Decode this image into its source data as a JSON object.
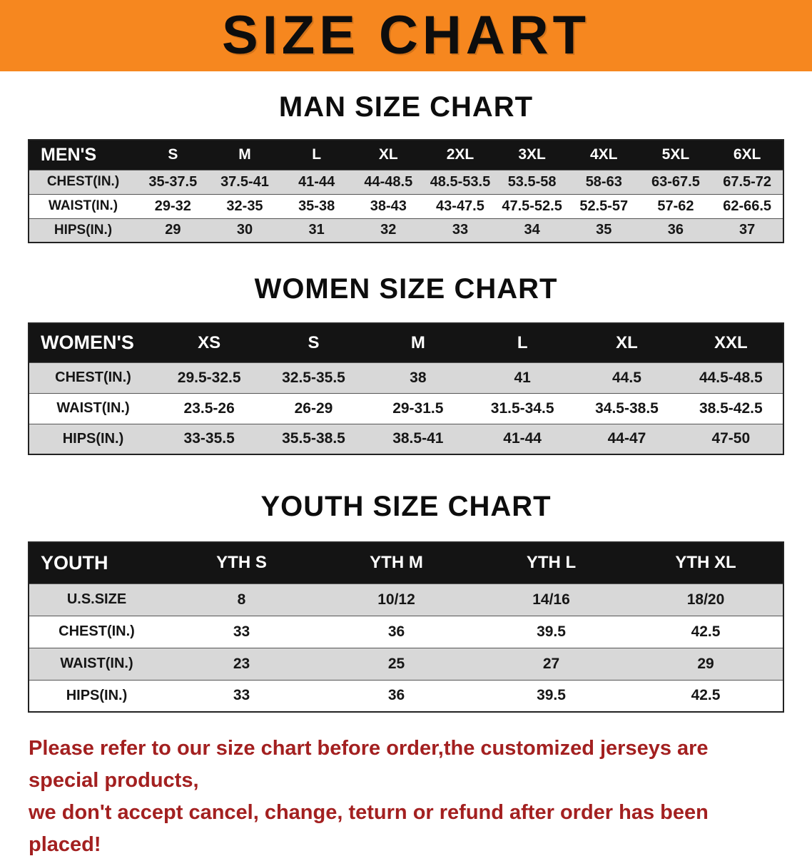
{
  "banner": {
    "title": "SIZE CHART",
    "bg_color": "#f6871f",
    "text_color": "#0d0d0d"
  },
  "sections": [
    {
      "id": "men",
      "heading": "MAN SIZE CHART",
      "header_row": [
        "MEN'S",
        "S",
        "M",
        "L",
        "XL",
        "2XL",
        "3XL",
        "4XL",
        "5XL",
        "6XL"
      ],
      "rows": [
        {
          "label": "CHEST(IN.)",
          "values": [
            "35-37.5",
            "37.5-41",
            "41-44",
            "44-48.5",
            "48.5-53.5",
            "53.5-58",
            "58-63",
            "63-67.5",
            "67.5-72"
          ]
        },
        {
          "label": "WAIST(IN.)",
          "values": [
            "29-32",
            "32-35",
            "35-38",
            "38-43",
            "43-47.5",
            "47.5-52.5",
            "52.5-57",
            "57-62",
            "62-66.5"
          ]
        },
        {
          "label": "HIPS(IN.)",
          "values": [
            "29",
            "30",
            "31",
            "32",
            "33",
            "34",
            "35",
            "36",
            "37"
          ]
        }
      ]
    },
    {
      "id": "women",
      "heading": "WOMEN SIZE CHART",
      "header_row": [
        "WOMEN'S",
        "XS",
        "S",
        "M",
        "L",
        "XL",
        "XXL"
      ],
      "rows": [
        {
          "label": "CHEST(IN.)",
          "values": [
            "29.5-32.5",
            "32.5-35.5",
            "38",
            "41",
            "44.5",
            "44.5-48.5"
          ]
        },
        {
          "label": "WAIST(IN.)",
          "values": [
            "23.5-26",
            "26-29",
            "29-31.5",
            "31.5-34.5",
            "34.5-38.5",
            "38.5-42.5"
          ]
        },
        {
          "label": "HIPS(IN.)",
          "values": [
            "33-35.5",
            "35.5-38.5",
            "38.5-41",
            "41-44",
            "44-47",
            "47-50"
          ]
        }
      ]
    },
    {
      "id": "youth",
      "heading": "YOUTH SIZE CHART",
      "header_row": [
        "YOUTH",
        "YTH S",
        "YTH M",
        "YTH L",
        "YTH XL"
      ],
      "rows": [
        {
          "label": "U.S.SIZE",
          "values": [
            "8",
            "10/12",
            "14/16",
            "18/20"
          ]
        },
        {
          "label": "CHEST(IN.)",
          "values": [
            "33",
            "36",
            "39.5",
            "42.5"
          ]
        },
        {
          "label": "WAIST(IN.)",
          "values": [
            "23",
            "25",
            "27",
            "29"
          ]
        },
        {
          "label": "HIPS(IN.)",
          "values": [
            "33",
            "36",
            "39.5",
            "42.5"
          ]
        }
      ]
    }
  ],
  "footer": {
    "text_color": "#a32020",
    "lines": [
      "Please refer to our size chart before order,the customized jerseys are special products,",
      "we don't accept cancel, change, teturn or refund after order has been placed!"
    ]
  }
}
